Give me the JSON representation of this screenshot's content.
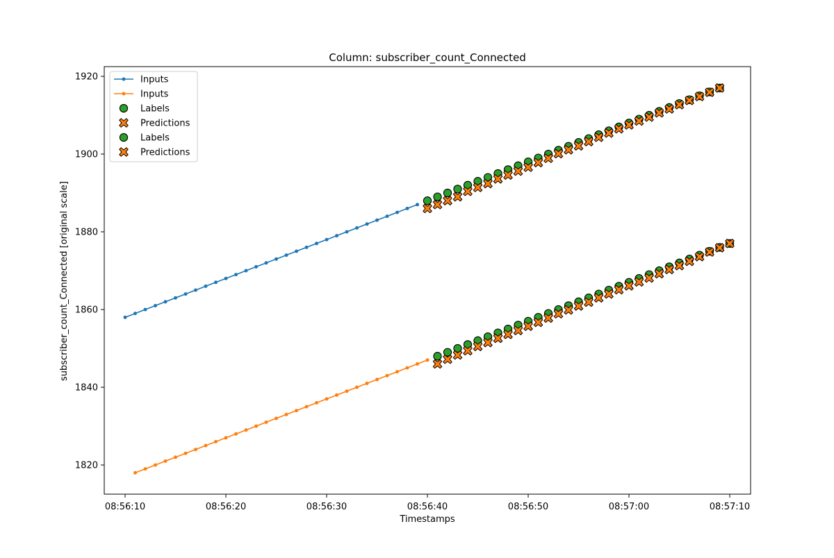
{
  "chart_data": {
    "type": "line",
    "title": "Column: subscriber_count_Connected",
    "xlabel": "Timestamps",
    "ylabel": "subscriber_count_Connected [original scale]",
    "x_ticks": [
      "08:56:10",
      "08:56:20",
      "08:56:30",
      "08:56:40",
      "08:56:50",
      "08:57:00",
      "08:57:10"
    ],
    "x_range_seconds_after_08_56_00": [
      10,
      70
    ],
    "y_ticks": [
      1820,
      1840,
      1860,
      1880,
      1900,
      1920
    ],
    "ylim": [
      1812.5,
      1922.5
    ],
    "grid": false,
    "legend": {
      "placement": "top-left",
      "entries": [
        {
          "label": "Inputs",
          "marker": "line"
        },
        {
          "label": "Inputs",
          "marker": "line"
        },
        {
          "label": "Labels",
          "marker": "circle"
        },
        {
          "label": "Predictions",
          "marker": "x"
        },
        {
          "label": "Labels",
          "marker": "circle"
        },
        {
          "label": "Predictions",
          "marker": "x"
        }
      ]
    },
    "colors": {
      "series1_line": "#1f77b4",
      "series2_line": "#ff7f0e",
      "labels": "#2ca02c",
      "predictions": "#ff7f0e",
      "marker_edge": "#000000"
    },
    "series": [
      {
        "kind": "inputs",
        "x_start": "08:56:10",
        "step_seconds": 1,
        "values": [
          1858,
          1859,
          1860,
          1861,
          1862,
          1863,
          1864,
          1865,
          1866,
          1867,
          1868,
          1869,
          1870,
          1871,
          1872,
          1873,
          1874,
          1875,
          1876,
          1877,
          1878,
          1879,
          1880,
          1881,
          1882,
          1883,
          1884,
          1885,
          1886,
          1887
        ]
      },
      {
        "kind": "inputs",
        "x_start": "08:56:11",
        "step_seconds": 1,
        "values": [
          1818,
          1819,
          1820,
          1821,
          1822,
          1823,
          1824,
          1825,
          1826,
          1827,
          1828,
          1829,
          1830,
          1831,
          1832,
          1833,
          1834,
          1835,
          1836,
          1837,
          1838,
          1839,
          1840,
          1841,
          1842,
          1843,
          1844,
          1845,
          1846,
          1847
        ]
      },
      {
        "kind": "labels",
        "x_start": "08:56:40",
        "step_seconds": 1,
        "values": [
          1888,
          1889,
          1890,
          1891,
          1892,
          1893,
          1894,
          1895,
          1896,
          1897,
          1898,
          1899,
          1900,
          1901,
          1902,
          1903,
          1904,
          1905,
          1906,
          1907,
          1908,
          1909,
          1910,
          1911,
          1912,
          1913,
          1914,
          1915,
          1916,
          1917
        ]
      },
      {
        "kind": "predictions",
        "x_start": "08:56:40",
        "step_seconds": 1,
        "values": [
          1886,
          1887,
          1888,
          1889,
          1890.4,
          1891.4,
          1892.4,
          1893.6,
          1894.6,
          1895.6,
          1896.6,
          1897.8,
          1898.9,
          1900.1,
          1901.1,
          1902.1,
          1903.2,
          1904.3,
          1905.4,
          1906.5,
          1907.5,
          1908.5,
          1909.5,
          1910.6,
          1911.6,
          1912.7,
          1913.8,
          1914.8,
          1915.9,
          1917
        ]
      },
      {
        "kind": "labels",
        "x_start": "08:56:41",
        "step_seconds": 1,
        "values": [
          1848,
          1849,
          1850,
          1851,
          1852,
          1853,
          1854,
          1855,
          1856,
          1857,
          1858,
          1859,
          1860,
          1861,
          1862,
          1863,
          1864,
          1865,
          1866,
          1867,
          1868,
          1869,
          1870,
          1871,
          1872,
          1873,
          1874,
          1875,
          1876,
          1877
        ]
      },
      {
        "kind": "predictions",
        "x_start": "08:56:41",
        "step_seconds": 1,
        "values": [
          1846,
          1847.2,
          1848.3,
          1849.4,
          1850.5,
          1851.5,
          1852.6,
          1853.6,
          1854.6,
          1855.7,
          1856.7,
          1857.8,
          1858.9,
          1859.9,
          1860.9,
          1861.9,
          1863,
          1864,
          1865.1,
          1866.1,
          1867.1,
          1868.1,
          1869.2,
          1870.3,
          1871.3,
          1872.4,
          1873.6,
          1874.8,
          1875.9,
          1877
        ]
      }
    ]
  }
}
